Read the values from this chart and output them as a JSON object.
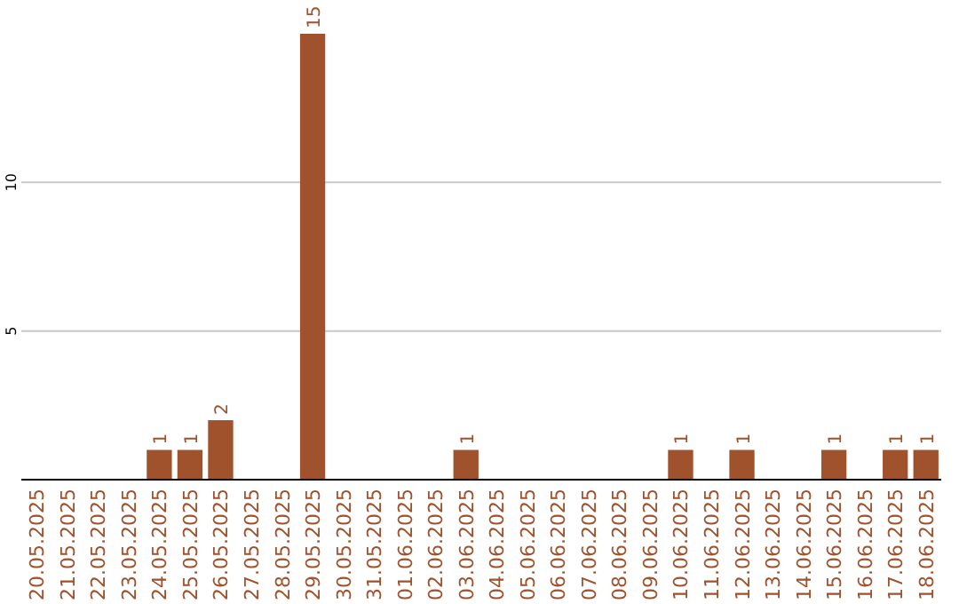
{
  "chart_data": {
    "type": "bar",
    "categories": [
      "20.05.2025",
      "21.05.2025",
      "22.05.2025",
      "23.05.2025",
      "24.05.2025",
      "25.05.2025",
      "26.05.2025",
      "27.05.2025",
      "28.05.2025",
      "29.05.2025",
      "30.05.2025",
      "31.05.2025",
      "01.06.2025",
      "02.06.2025",
      "03.06.2025",
      "04.06.2025",
      "05.06.2025",
      "06.06.2025",
      "07.06.2025",
      "08.06.2025",
      "09.06.2025",
      "10.06.2025",
      "11.06.2025",
      "12.06.2025",
      "13.06.2025",
      "14.06.2025",
      "15.06.2025",
      "16.06.2025",
      "17.06.2025",
      "18.06.2025"
    ],
    "values": [
      0,
      0,
      0,
      0,
      1,
      1,
      2,
      0,
      0,
      15,
      0,
      0,
      0,
      0,
      1,
      0,
      0,
      0,
      0,
      0,
      0,
      1,
      0,
      1,
      0,
      0,
      1,
      0,
      1,
      1
    ],
    "value_labels": [
      null,
      null,
      null,
      null,
      "1",
      "1",
      "2",
      null,
      null,
      "15",
      null,
      null,
      null,
      null,
      "1",
      null,
      null,
      null,
      null,
      null,
      null,
      "1",
      null,
      "1",
      null,
      null,
      "1",
      null,
      "1",
      "1"
    ],
    "color": "#a0522d",
    "ylim": [
      0,
      15
    ],
    "yticks": [
      {
        "value": 0,
        "label": null
      },
      5,
      10
    ],
    "grid": "y"
  }
}
